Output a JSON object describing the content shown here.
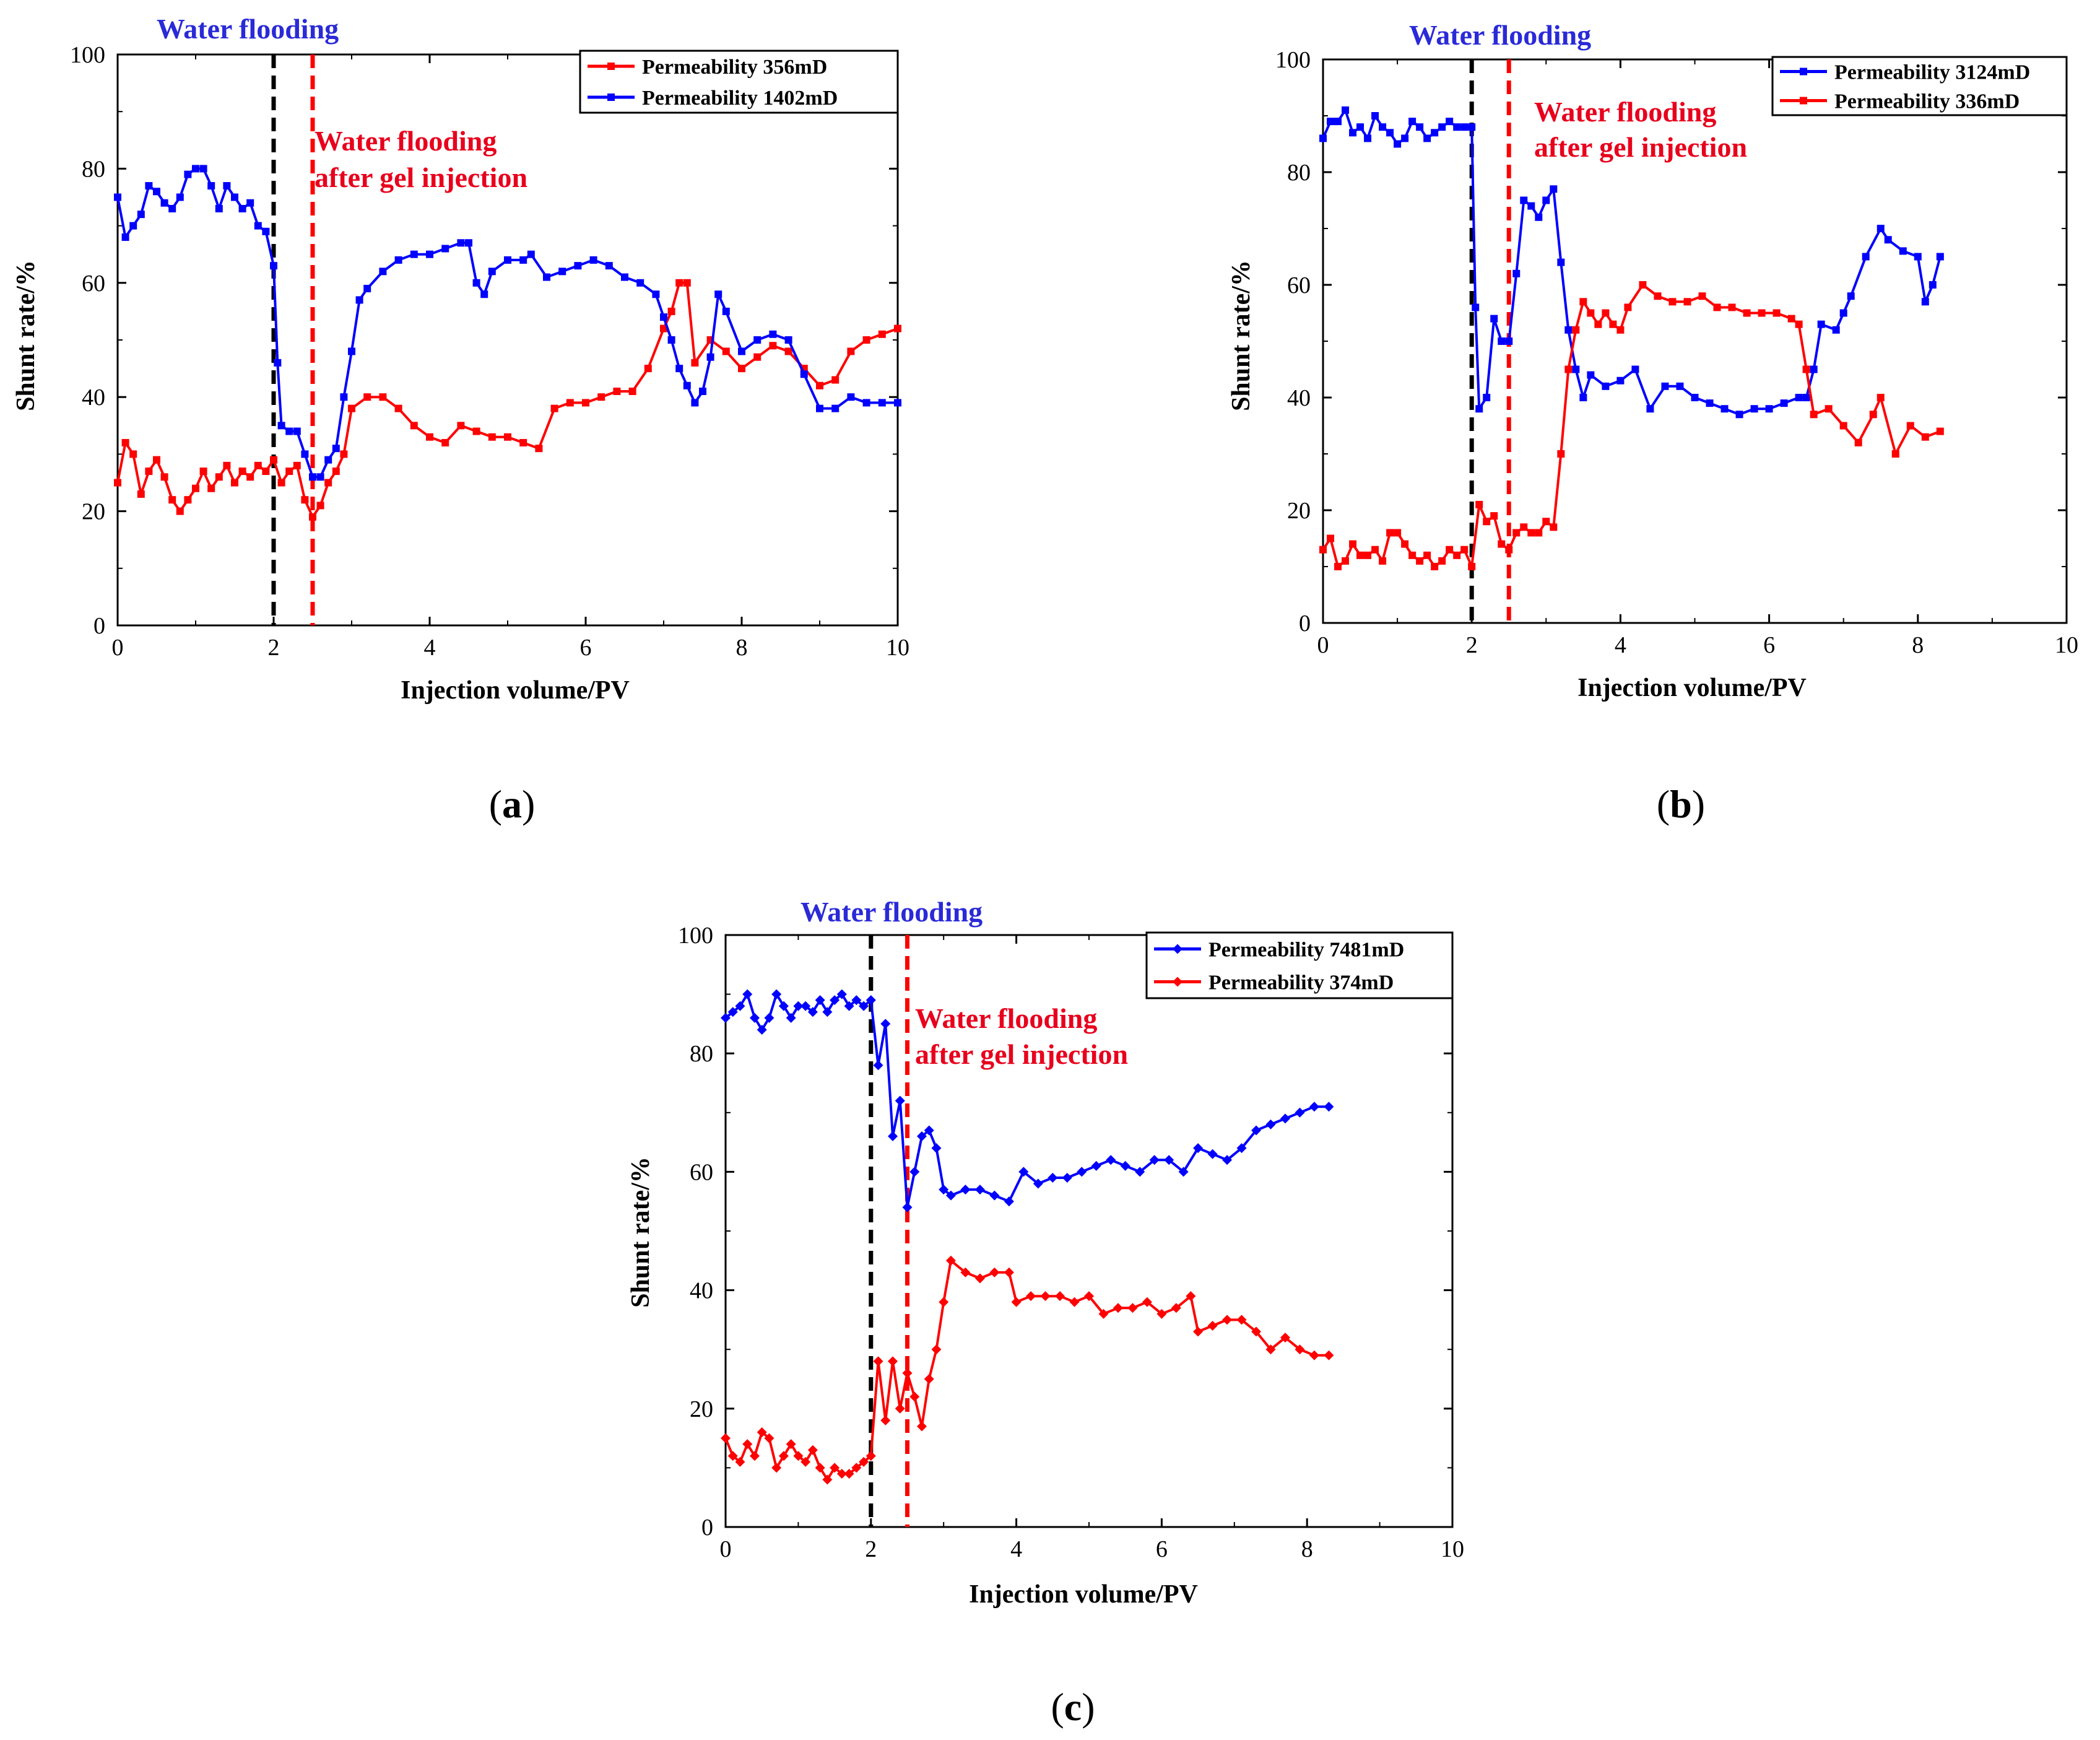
{
  "figure": {
    "panels": [
      {
        "id": "a",
        "caption": "a"
      },
      {
        "id": "b",
        "caption": "b"
      },
      {
        "id": "c",
        "caption": "c"
      }
    ]
  },
  "chart_data": [
    {
      "type": "line",
      "panel": "a",
      "xlabel": "Injection volume/PV",
      "ylabel": "Shunt rate/%",
      "xlim": [
        0,
        10
      ],
      "ylim": [
        0,
        100
      ],
      "xticks": [
        "0",
        "2",
        "4",
        "6",
        "8",
        "10"
      ],
      "yticks": [
        "0",
        "20",
        "40",
        "60",
        "80",
        "100"
      ],
      "legend_position": "top-right",
      "annotations": {
        "water_flooding": "Water flooding",
        "water_flooding_after_gel": [
          "Water flooding",
          "after gel injection"
        ]
      },
      "phase_markers": [
        {
          "x": 2,
          "color": "#000000"
        },
        {
          "x": 2.5,
          "color": "#ff0000"
        }
      ],
      "series": [
        {
          "name": "Permeability  356mD",
          "color": "#ff0000",
          "x": [
            0,
            0.1,
            0.2,
            0.3,
            0.4,
            0.5,
            0.6,
            0.7,
            0.8,
            0.9,
            1.0,
            1.1,
            1.2,
            1.3,
            1.4,
            1.5,
            1.6,
            1.7,
            1.8,
            1.9,
            2.0,
            2.1,
            2.2,
            2.3,
            2.4,
            2.5,
            2.6,
            2.7,
            2.8,
            2.9,
            3.0,
            3.2,
            3.4,
            3.6,
            3.8,
            4.0,
            4.2,
            4.4,
            4.6,
            4.8,
            5.0,
            5.2,
            5.4,
            5.6,
            5.8,
            6.0,
            6.2,
            6.4,
            6.6,
            6.8,
            7.0,
            7.1,
            7.2,
            7.3,
            7.4,
            7.6,
            7.8,
            8.0,
            8.2,
            8.4,
            8.6,
            8.8,
            9.0,
            9.2,
            9.4,
            9.6,
            9.8,
            10.0
          ],
          "values": [
            25,
            32,
            30,
            23,
            27,
            29,
            26,
            22,
            20,
            22,
            24,
            27,
            24,
            26,
            28,
            25,
            27,
            26,
            28,
            27,
            29,
            25,
            27,
            28,
            22,
            19,
            21,
            25,
            27,
            30,
            38,
            40,
            40,
            38,
            35,
            33,
            32,
            35,
            34,
            33,
            33,
            32,
            31,
            38,
            39,
            39,
            40,
            41,
            41,
            45,
            52,
            55,
            60,
            60,
            46,
            50,
            48,
            45,
            47,
            49,
            48,
            45,
            42,
            43,
            48,
            50,
            51,
            52
          ]
        },
        {
          "name": "Permeability  1402mD",
          "color": "#0000ff",
          "x": [
            0,
            0.1,
            0.2,
            0.3,
            0.4,
            0.5,
            0.6,
            0.7,
            0.8,
            0.9,
            1.0,
            1.1,
            1.2,
            1.3,
            1.4,
            1.5,
            1.6,
            1.7,
            1.8,
            1.9,
            2.0,
            2.05,
            2.1,
            2.2,
            2.3,
            2.4,
            2.5,
            2.6,
            2.7,
            2.8,
            2.9,
            3.0,
            3.1,
            3.2,
            3.4,
            3.6,
            3.8,
            4.0,
            4.2,
            4.4,
            4.5,
            4.6,
            4.7,
            4.8,
            5.0,
            5.2,
            5.3,
            5.5,
            5.7,
            5.9,
            6.1,
            6.3,
            6.5,
            6.7,
            6.9,
            7.0,
            7.1,
            7.2,
            7.3,
            7.4,
            7.5,
            7.6,
            7.7,
            7.8,
            8.0,
            8.2,
            8.4,
            8.6,
            8.8,
            9.0,
            9.2,
            9.4,
            9.6,
            9.8,
            10.0
          ],
          "values": [
            75,
            68,
            70,
            72,
            77,
            76,
            74,
            73,
            75,
            79,
            80,
            80,
            77,
            73,
            77,
            75,
            73,
            74,
            70,
            69,
            63,
            46,
            35,
            34,
            34,
            30,
            26,
            26,
            29,
            31,
            40,
            48,
            57,
            59,
            62,
            64,
            65,
            65,
            66,
            67,
            67,
            60,
            58,
            62,
            64,
            64,
            65,
            61,
            62,
            63,
            64,
            63,
            61,
            60,
            58,
            54,
            50,
            45,
            42,
            39,
            41,
            47,
            58,
            55,
            48,
            50,
            51,
            50,
            44,
            38,
            38,
            40,
            39,
            39,
            39
          ]
        }
      ]
    },
    {
      "type": "line",
      "panel": "b",
      "xlabel": "Injection volume/PV",
      "ylabel": "Shunt rate/%",
      "xlim": [
        0,
        10
      ],
      "ylim": [
        0,
        100
      ],
      "xticks": [
        "0",
        "2",
        "4",
        "6",
        "8",
        "10"
      ],
      "yticks": [
        "0",
        "20",
        "40",
        "60",
        "80",
        "100"
      ],
      "legend_position": "top-right",
      "annotations": {
        "water_flooding": "Water flooding",
        "water_flooding_after_gel": [
          "Water flooding",
          "after gel injection"
        ]
      },
      "phase_markers": [
        {
          "x": 2,
          "color": "#000000"
        },
        {
          "x": 2.5,
          "color": "#ff0000"
        }
      ],
      "series": [
        {
          "name": "Permeability 3124mD",
          "color": "#0000ff",
          "x": [
            0,
            0.1,
            0.2,
            0.3,
            0.4,
            0.5,
            0.6,
            0.7,
            0.8,
            0.9,
            1.0,
            1.1,
            1.2,
            1.3,
            1.4,
            1.5,
            1.6,
            1.7,
            1.8,
            1.9,
            2.0,
            2.05,
            2.1,
            2.2,
            2.3,
            2.4,
            2.5,
            2.6,
            2.7,
            2.8,
            2.9,
            3.0,
            3.1,
            3.2,
            3.3,
            3.4,
            3.5,
            3.6,
            3.8,
            4.0,
            4.2,
            4.4,
            4.6,
            4.8,
            5.0,
            5.2,
            5.4,
            5.6,
            5.8,
            6.0,
            6.2,
            6.4,
            6.5,
            6.6,
            6.7,
            6.9,
            7.0,
            7.1,
            7.3,
            7.5,
            7.6,
            7.8,
            8.0,
            8.1,
            8.2,
            8.3
          ],
          "values": [
            86,
            89,
            89,
            91,
            87,
            88,
            86,
            90,
            88,
            87,
            85,
            86,
            89,
            88,
            86,
            87,
            88,
            89,
            88,
            88,
            88,
            56,
            38,
            40,
            54,
            50,
            50,
            62,
            75,
            74,
            72,
            75,
            77,
            64,
            52,
            45,
            40,
            44,
            42,
            43,
            45,
            38,
            42,
            42,
            40,
            39,
            38,
            37,
            38,
            38,
            39,
            40,
            40,
            45,
            53,
            52,
            55,
            58,
            65,
            70,
            68,
            66,
            65,
            57,
            60,
            65
          ]
        },
        {
          "name": "Permeability 336mD",
          "color": "#ff0000",
          "x": [
            0,
            0.1,
            0.2,
            0.3,
            0.4,
            0.5,
            0.6,
            0.7,
            0.8,
            0.9,
            1.0,
            1.1,
            1.2,
            1.3,
            1.4,
            1.5,
            1.6,
            1.7,
            1.8,
            1.9,
            2.0,
            2.1,
            2.2,
            2.3,
            2.4,
            2.5,
            2.6,
            2.7,
            2.8,
            2.9,
            3.0,
            3.1,
            3.2,
            3.3,
            3.4,
            3.5,
            3.6,
            3.7,
            3.8,
            3.9,
            4.0,
            4.1,
            4.3,
            4.5,
            4.7,
            4.9,
            5.1,
            5.3,
            5.5,
            5.7,
            5.9,
            6.1,
            6.3,
            6.4,
            6.5,
            6.6,
            6.8,
            7.0,
            7.2,
            7.4,
            7.5,
            7.7,
            7.9,
            8.1,
            8.3
          ],
          "values": [
            13,
            15,
            10,
            11,
            14,
            12,
            12,
            13,
            11,
            16,
            16,
            14,
            12,
            11,
            12,
            10,
            11,
            13,
            12,
            13,
            10,
            21,
            18,
            19,
            14,
            13,
            16,
            17,
            16,
            16,
            18,
            17,
            30,
            45,
            52,
            57,
            55,
            53,
            55,
            53,
            52,
            56,
            60,
            58,
            57,
            57,
            58,
            56,
            56,
            55,
            55,
            55,
            54,
            53,
            45,
            37,
            38,
            35,
            32,
            37,
            40,
            30,
            35,
            33,
            34
          ]
        }
      ]
    },
    {
      "type": "line",
      "panel": "c",
      "xlabel": "Injection volume/PV",
      "ylabel": "Shunt rate/%",
      "xlim": [
        0,
        10
      ],
      "ylim": [
        0,
        100
      ],
      "xticks": [
        "0",
        "2",
        "4",
        "6",
        "8",
        "10"
      ],
      "yticks": [
        "0",
        "20",
        "40",
        "60",
        "80",
        "100"
      ],
      "legend_position": "top-right",
      "annotations": {
        "water_flooding": "Water flooding",
        "water_flooding_after_gel": [
          "Water flooding",
          "after gel injection"
        ]
      },
      "phase_markers": [
        {
          "x": 2,
          "color": "#000000"
        },
        {
          "x": 2.5,
          "color": "#ff0000"
        }
      ],
      "series": [
        {
          "name": "Permeability  7481mD",
          "color": "#0000ff",
          "x": [
            0,
            0.1,
            0.2,
            0.3,
            0.4,
            0.5,
            0.6,
            0.7,
            0.8,
            0.9,
            1.0,
            1.1,
            1.2,
            1.3,
            1.4,
            1.5,
            1.6,
            1.7,
            1.8,
            1.9,
            2.0,
            2.1,
            2.2,
            2.3,
            2.4,
            2.5,
            2.6,
            2.7,
            2.8,
            2.9,
            3.0,
            3.1,
            3.3,
            3.5,
            3.7,
            3.9,
            4.1,
            4.3,
            4.5,
            4.7,
            4.9,
            5.1,
            5.3,
            5.5,
            5.7,
            5.9,
            6.1,
            6.3,
            6.5,
            6.7,
            6.9,
            7.1,
            7.3,
            7.5,
            7.7,
            7.9,
            8.1,
            8.3
          ],
          "values": [
            86,
            87,
            88,
            90,
            86,
            84,
            86,
            90,
            88,
            86,
            88,
            88,
            87,
            89,
            87,
            89,
            90,
            88,
            89,
            88,
            89,
            78,
            85,
            66,
            72,
            54,
            60,
            66,
            67,
            64,
            57,
            56,
            57,
            57,
            56,
            55,
            60,
            58,
            59,
            59,
            60,
            61,
            62,
            61,
            60,
            62,
            62,
            60,
            64,
            63,
            62,
            64,
            67,
            68,
            69,
            70,
            71,
            71
          ]
        },
        {
          "name": "Permeability  374mD",
          "color": "#ff0000",
          "x": [
            0,
            0.1,
            0.2,
            0.3,
            0.4,
            0.5,
            0.6,
            0.7,
            0.8,
            0.9,
            1.0,
            1.1,
            1.2,
            1.3,
            1.4,
            1.5,
            1.6,
            1.7,
            1.8,
            1.9,
            2.0,
            2.1,
            2.2,
            2.3,
            2.4,
            2.5,
            2.6,
            2.7,
            2.8,
            2.9,
            3.0,
            3.1,
            3.3,
            3.5,
            3.7,
            3.9,
            4.0,
            4.2,
            4.4,
            4.6,
            4.8,
            5.0,
            5.2,
            5.4,
            5.6,
            5.8,
            6.0,
            6.2,
            6.4,
            6.5,
            6.7,
            6.9,
            7.1,
            7.3,
            7.5,
            7.7,
            7.9,
            8.1,
            8.3
          ],
          "values": [
            15,
            12,
            11,
            14,
            12,
            16,
            15,
            10,
            12,
            14,
            12,
            11,
            13,
            10,
            8,
            10,
            9,
            9,
            10,
            11,
            12,
            28,
            18,
            28,
            20,
            26,
            22,
            17,
            25,
            30,
            38,
            45,
            43,
            42,
            43,
            43,
            38,
            39,
            39,
            39,
            38,
            39,
            36,
            37,
            37,
            38,
            36,
            37,
            39,
            33,
            34,
            35,
            35,
            33,
            30,
            32,
            30,
            29,
            29
          ]
        }
      ]
    }
  ]
}
